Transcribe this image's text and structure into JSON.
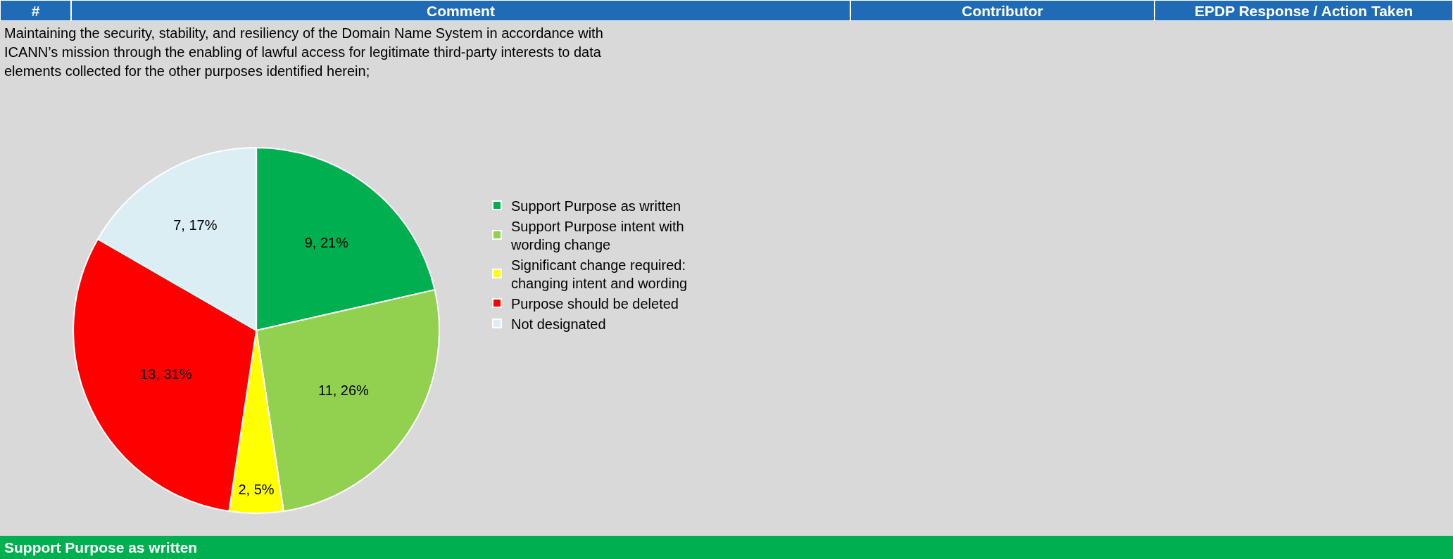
{
  "chart_data": {
    "type": "pie",
    "title": "Maintaining the security, stability, and resiliency of the Domain Name System in accordance with ICANN’s mission through the enabling of lawful access for legitimate third-party interests to data elements collected for the other purposes identified herein;",
    "categories": [
      "Support Purpose as written",
      "Support Purpose intent with wording change",
      "Significant change required: changing intent and wording",
      "Purpose should be deleted",
      "Not designated"
    ],
    "values": [
      9,
      11,
      2,
      13,
      7
    ],
    "value_labels": [
      "9, 21%",
      "11, 26%",
      "2, 5%",
      "13, 31%",
      "7, 17%"
    ],
    "colors": [
      "#00b050",
      "#92d050",
      "#ffff00",
      "#ff0000",
      "#daeef3"
    ],
    "legend": "right",
    "annotations": [
      "#",
      "Comment",
      "Contributor",
      "EPDP Response / Action Taken",
      "Support Purpose as written"
    ]
  }
}
